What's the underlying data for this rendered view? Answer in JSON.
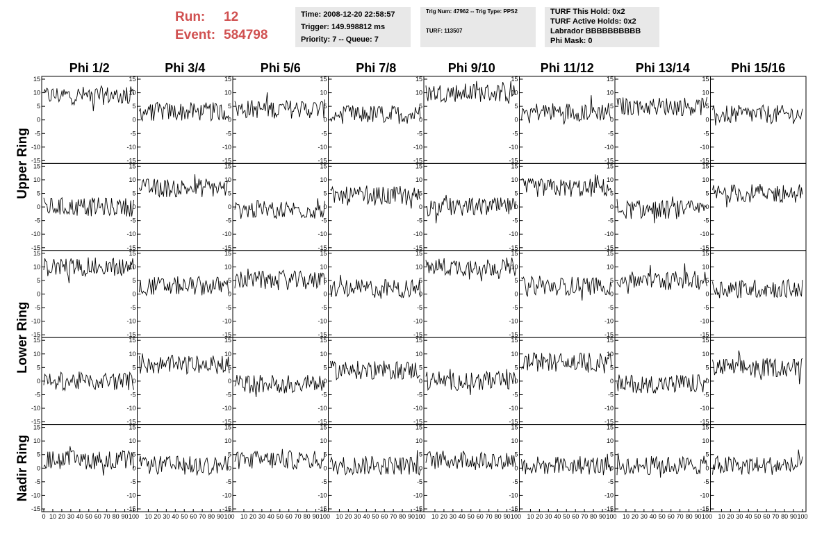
{
  "header": {
    "run_label": "Run:",
    "run_value": "12",
    "event_label": "Event:",
    "event_value": "584798",
    "info1": [
      "Time: 2008-12-20 22:58:57",
      "Trigger: 149.998812 ms",
      "Priority: 7 -- Queue: 7"
    ],
    "info2": [
      "Trig Num: 47962 -- Trig Type: PPS2",
      "TURF: 113507"
    ],
    "info3": [
      "TURF This Hold: 0x2",
      "TURF Active Holds: 0x2",
      "Labrador BBBBBBBBBB",
      "Phi Mask: 0"
    ]
  },
  "colors": {
    "run": "#d05050",
    "panel": "#e8e8e8",
    "trace": "#000000"
  },
  "chart_data": {
    "type": "line",
    "columns": [
      "Phi 1/2",
      "Phi 3/4",
      "Phi 5/6",
      "Phi 7/8",
      "Phi 9/10",
      "Phi 11/12",
      "Phi 13/14",
      "Phi 15/16"
    ],
    "ring_labels": [
      "Upper Ring",
      "Lower Ring",
      "Nadir Ring"
    ],
    "rows_per_ring": [
      2,
      2,
      1
    ],
    "x_range": [
      0,
      100
    ],
    "y_range": [
      -15,
      15
    ],
    "x_tick_labels": [
      "0",
      "10",
      "20",
      "30",
      "40",
      "50",
      "60",
      "70",
      "80",
      "90",
      "100"
    ],
    "y_tick_labels": [
      "15",
      "10",
      "5",
      "0",
      "-5",
      "-10",
      "-15"
    ],
    "trace_baselines": [
      [
        9,
        3,
        4,
        2,
        10,
        3,
        5,
        2
      ],
      [
        0,
        7,
        -1,
        4,
        0,
        7,
        -1,
        5
      ],
      [
        10,
        3,
        5,
        2,
        10,
        3,
        5,
        2
      ],
      [
        0,
        6,
        -1,
        4,
        0,
        7,
        -1,
        5
      ],
      [
        3,
        1,
        3,
        1,
        3,
        1,
        1,
        1
      ]
    ],
    "trace_amplitude": 3.5,
    "samples_per_trace": 90
  }
}
